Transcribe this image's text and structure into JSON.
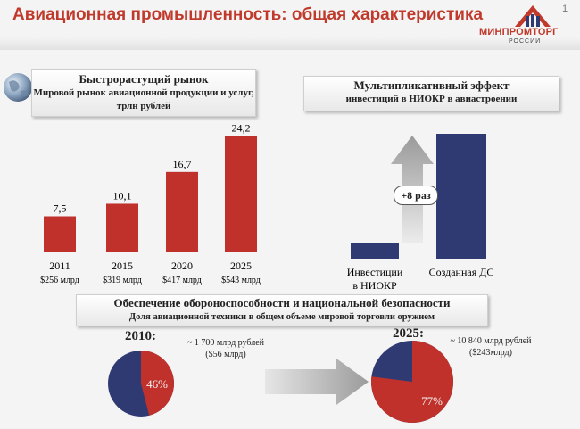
{
  "header": {
    "title": "Авиационная промышленность: общая характеристика",
    "page_number": "1",
    "logo_text": "МИНПРОМТОРГ",
    "logo_sub": "РОССИИ"
  },
  "market_panel": {
    "heading": "Быстрорастущий рынок",
    "subheading": "Мировой рынок авиационной продукции и услуг, трлн рублей"
  },
  "multiplier_panel": {
    "heading": "Мультипликативный эффект",
    "subheading": "инвестиций в НИОКР в авиастроении",
    "badge": "+8 раз"
  },
  "defense_panel": {
    "heading": "Обеспечение обороноспособности и национальной безопасности",
    "subheading": "Доля авиационной техники в общем объеме мировой торговли оружием",
    "left_year": "2010:",
    "left_note_line1": "~ 1 700 млрд рублей",
    "left_note_line2": "($56 млрд)",
    "right_year": "2025:",
    "right_note_line1": "~ 10 840 млрд рублей",
    "right_note_line2": "($243млрд)"
  },
  "colors": {
    "red": "#c0312b",
    "navy": "#2f3a73",
    "gray_arrow": "#b8b8b8"
  },
  "chart_data": [
    {
      "type": "bar",
      "categories": [
        "2011",
        "2015",
        "2020",
        "2025"
      ],
      "category_notes": [
        "$256 млрд",
        "$319 млрд",
        "$417 млрд",
        "$543 млрд"
      ],
      "values": [
        7.5,
        10.1,
        16.7,
        24.2
      ],
      "value_labels": [
        "7,5",
        "10,1",
        "16,7",
        "24,2"
      ],
      "ylim": [
        0,
        25
      ]
    },
    {
      "type": "bar",
      "categories": [
        "Инвестиции в НИОКР",
        "Созданная ДС"
      ],
      "category_lines": [
        [
          "Инвестиции",
          "в НИОКР"
        ],
        [
          "Созданная ДС"
        ]
      ],
      "values": [
        1,
        8
      ],
      "ylim": [
        0,
        8
      ]
    },
    {
      "type": "pie",
      "label": "2010",
      "slices": [
        46,
        54
      ],
      "slice_labels": [
        "46%",
        ""
      ]
    },
    {
      "type": "pie",
      "label": "2025",
      "slices": [
        77,
        23
      ],
      "slice_labels": [
        "77%",
        ""
      ]
    }
  ]
}
